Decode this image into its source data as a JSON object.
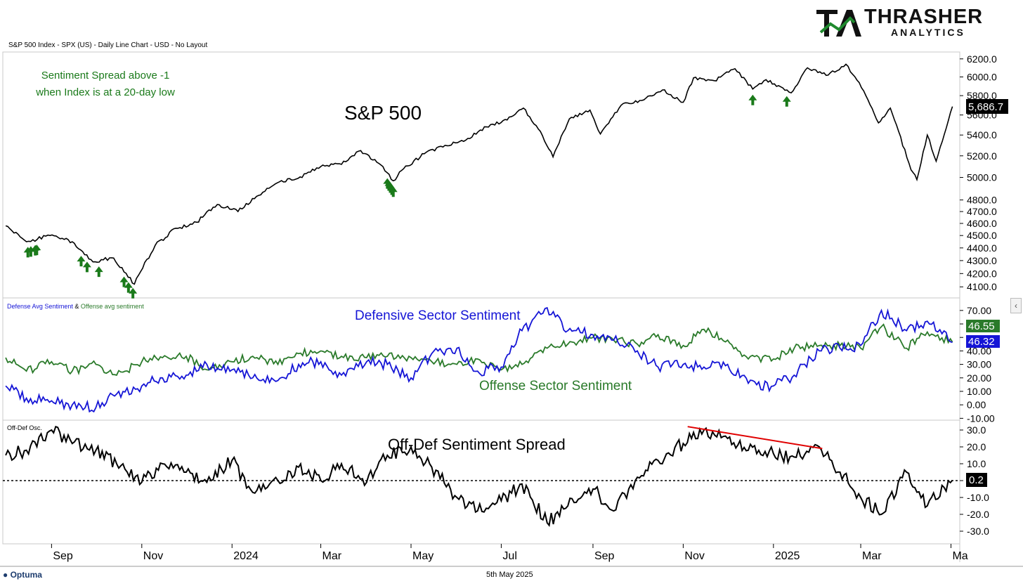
{
  "header": {
    "chart_title": "S&P 500 Index - SPX (US) - Daily Line Chart - USD - No Layout"
  },
  "logo": {
    "text": "THRASHER",
    "subtext": "ANALYTICS",
    "colors": {
      "dark": "#111111",
      "green": "#1f8a2e"
    }
  },
  "footer": {
    "brand": "Optuma",
    "date": "5th May 2025"
  },
  "colors": {
    "price_line": "#000000",
    "signal_arrow": "#1a7a1a",
    "annotation_green": "#1a7a1a",
    "defense_line": "#1515d6",
    "offense_line": "#2a7a2a",
    "spread_line": "#000000",
    "trend_line": "#e00000",
    "last_value_bg": "#000000"
  },
  "chart_data": [
    {
      "type": "line",
      "panel": "price",
      "title": "S&P 500",
      "annotation": [
        "Sentiment Spread above -1",
        "when Index is at a 20-day low"
      ],
      "x": [
        "2023-08-01",
        "2023-08-15",
        "2023-08-31",
        "2023-09-15",
        "2023-09-29",
        "2023-10-13",
        "2023-10-27",
        "2023-11-10",
        "2023-11-24",
        "2023-12-08",
        "2023-12-22",
        "2024-01-05",
        "2024-01-19",
        "2024-02-02",
        "2024-02-16",
        "2024-03-01",
        "2024-03-15",
        "2024-03-28",
        "2024-04-12",
        "2024-04-19",
        "2024-04-26",
        "2024-05-10",
        "2024-05-24",
        "2024-06-07",
        "2024-06-21",
        "2024-07-05",
        "2024-07-16",
        "2024-07-26",
        "2024-08-05",
        "2024-08-16",
        "2024-08-30",
        "2024-09-06",
        "2024-09-20",
        "2024-10-04",
        "2024-10-18",
        "2024-11-01",
        "2024-11-08",
        "2024-11-22",
        "2024-12-06",
        "2024-12-18",
        "2024-12-27",
        "2025-01-13",
        "2025-01-24",
        "2025-02-07",
        "2025-02-19",
        "2025-03-03",
        "2025-03-13",
        "2025-03-21",
        "2025-04-04",
        "2025-04-08",
        "2025-04-15",
        "2025-04-21",
        "2025-05-02"
      ],
      "y": [
        4580,
        4450,
        4500,
        4450,
        4290,
        4320,
        4120,
        4420,
        4560,
        4610,
        4760,
        4700,
        4840,
        4960,
        5005,
        5100,
        5120,
        5250,
        5100,
        4970,
        5080,
        5220,
        5300,
        5350,
        5480,
        5550,
        5670,
        5460,
        5190,
        5560,
        5650,
        5410,
        5700,
        5750,
        5860,
        5730,
        5990,
        5960,
        6090,
        5870,
        5970,
        5830,
        6100,
        6020,
        6140,
        5850,
        5520,
        5670,
        5070,
        4980,
        5400,
        5150,
        5686.7
      ],
      "y_axis": {
        "ticks": [
          4100,
          4200,
          4300,
          4400,
          4500,
          4600,
          4700,
          4800,
          5000,
          5200,
          5400,
          5600,
          5800,
          6000,
          6200
        ],
        "tick_labels": [
          "4100.0",
          "4200.0",
          "4300.0",
          "4400.0",
          "4500.0",
          "4600.0",
          "4700.0",
          "4800.0",
          "5000.0",
          "5200.0",
          "5400.0",
          "5600.0",
          "5800.0",
          "6000.0",
          "6200.0"
        ],
        "scale": "log"
      },
      "last_value": "5,686.7",
      "signals": [
        "2023-08-16",
        "2023-08-18",
        "2023-08-21",
        "2023-08-22",
        "2023-09-21",
        "2023-09-25",
        "2023-10-03",
        "2023-10-20",
        "2023-10-23",
        "2023-10-26",
        "2024-04-15",
        "2024-04-16",
        "2024-04-17",
        "2024-04-18",
        "2024-04-19",
        "2024-12-18",
        "2025-01-10"
      ]
    },
    {
      "type": "line",
      "panel": "sentiment",
      "legend": [
        {
          "name": "Defense Avg Sentiment",
          "color": "#1515d6"
        },
        {
          "name": "Offense avg sentiment",
          "color": "#2a7a2a"
        }
      ],
      "annotations": [
        "Defensive Sector Sentiment",
        "Offense Sector Sentiment"
      ],
      "x": [
        "2023-08-01",
        "2023-08-15",
        "2023-09-01",
        "2023-09-15",
        "2023-10-01",
        "2023-10-15",
        "2023-11-01",
        "2023-11-15",
        "2023-12-01",
        "2023-12-15",
        "2024-01-01",
        "2024-01-15",
        "2024-02-01",
        "2024-02-15",
        "2024-03-01",
        "2024-03-15",
        "2024-04-01",
        "2024-04-15",
        "2024-05-01",
        "2024-05-15",
        "2024-06-01",
        "2024-06-15",
        "2024-07-01",
        "2024-07-15",
        "2024-08-01",
        "2024-08-15",
        "2024-09-01",
        "2024-09-15",
        "2024-10-01",
        "2024-10-15",
        "2024-11-01",
        "2024-11-15",
        "2024-12-01",
        "2024-12-15",
        "2025-01-01",
        "2025-01-15",
        "2025-02-01",
        "2025-02-15",
        "2025-03-01",
        "2025-03-15",
        "2025-04-01",
        "2025-04-15",
        "2025-05-02"
      ],
      "series": [
        {
          "name": "Defense Avg Sentiment",
          "values": [
            14,
            5,
            3,
            0,
            -2,
            8,
            14,
            20,
            22,
            30,
            26,
            20,
            18,
            30,
            32,
            22,
            32,
            30,
            20,
            38,
            42,
            25,
            28,
            55,
            72,
            55,
            52,
            48,
            40,
            28,
            30,
            28,
            30,
            16,
            14,
            22,
            40,
            42,
            44,
            70,
            55,
            62,
            46.32
          ]
        },
        {
          "name": "Offense avg sentiment",
          "values": [
            35,
            25,
            32,
            25,
            30,
            22,
            32,
            35,
            36,
            26,
            32,
            36,
            30,
            38,
            40,
            36,
            35,
            36,
            35,
            32,
            30,
            34,
            26,
            30,
            42,
            45,
            50,
            48,
            45,
            52,
            44,
            56,
            48,
            34,
            34,
            42,
            44,
            44,
            42,
            58,
            42,
            54,
            46.55
          ]
        }
      ],
      "y_axis": {
        "ticks": [
          -10,
          0,
          10,
          20,
          30,
          40,
          50,
          60,
          70
        ],
        "tick_labels": [
          "-10.00",
          "0.00",
          "10.00",
          "20.00",
          "30.00",
          "40.00",
          "",
          "",
          "70.00"
        ]
      },
      "last_values": [
        "46.55",
        "46.32"
      ]
    },
    {
      "type": "line",
      "panel": "oscillator",
      "legend": [
        {
          "name": "Off-Def Osc.",
          "color": "#000000"
        }
      ],
      "annotation": "Off-Def Sentiment Spread",
      "x": [
        "2023-08-01",
        "2023-08-15",
        "2023-09-01",
        "2023-09-15",
        "2023-10-01",
        "2023-10-15",
        "2023-11-01",
        "2023-11-15",
        "2023-12-01",
        "2023-12-15",
        "2024-01-01",
        "2024-01-15",
        "2024-02-01",
        "2024-02-15",
        "2024-03-01",
        "2024-03-15",
        "2024-04-01",
        "2024-04-15",
        "2024-05-01",
        "2024-05-15",
        "2024-06-01",
        "2024-06-15",
        "2024-07-01",
        "2024-07-15",
        "2024-08-01",
        "2024-08-15",
        "2024-09-01",
        "2024-09-15",
        "2024-10-01",
        "2024-10-15",
        "2024-11-01",
        "2024-11-15",
        "2024-12-01",
        "2024-12-15",
        "2025-01-01",
        "2025-01-15",
        "2025-02-01",
        "2025-02-15",
        "2025-03-01",
        "2025-03-15",
        "2025-04-01",
        "2025-04-15",
        "2025-05-02"
      ],
      "y": [
        15,
        18,
        30,
        22,
        18,
        10,
        -1,
        10,
        5,
        -1,
        12,
        -7,
        0,
        8,
        0,
        10,
        -1,
        15,
        20,
        8,
        -10,
        -18,
        -12,
        -2,
        -25,
        -15,
        -5,
        -18,
        2,
        12,
        22,
        30,
        25,
        18,
        16,
        14,
        20,
        5,
        -10,
        -20,
        5,
        -15,
        0.2
      ],
      "y_axis": {
        "ticks": [
          -30,
          -20,
          -10,
          0,
          10,
          20,
          30
        ],
        "tick_labels": [
          "-30.0",
          "-20.0",
          "-10.0",
          "",
          "10.0",
          "20.0",
          "30.0"
        ]
      },
      "reference_line": 0,
      "trend_line": {
        "x": [
          "2024-11-04",
          "2025-02-03"
        ],
        "y": [
          32,
          19
        ]
      },
      "last_value": "0.2"
    }
  ],
  "time_axis": {
    "labels": [
      "Sep",
      "Nov",
      "2024",
      "Mar",
      "May",
      "Jul",
      "Sep",
      "Nov",
      "2025",
      "Mar",
      "Ma"
    ],
    "label_dates": [
      "2023-09-01",
      "2023-11-01",
      "2024-01-01",
      "2024-03-01",
      "2024-05-01",
      "2024-07-01",
      "2024-09-01",
      "2024-11-01",
      "2025-01-01",
      "2025-03-01",
      "2025-05-01"
    ]
  }
}
